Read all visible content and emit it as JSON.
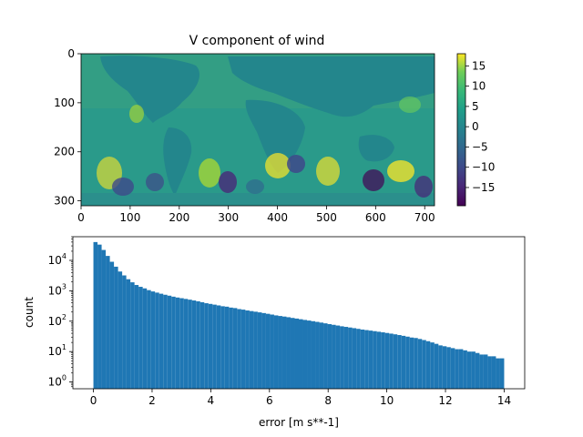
{
  "chart_data": [
    {
      "type": "heatmap",
      "title": "V component of wind",
      "xlim": [
        0,
        720
      ],
      "ylim": [
        0,
        310
      ],
      "y_inverted": true,
      "x_ticks": [
        0,
        100,
        200,
        300,
        400,
        500,
        600,
        700
      ],
      "y_ticks": [
        0,
        100,
        200,
        300
      ],
      "colormap": "viridis",
      "colorbar": {
        "range": [
          -19.5,
          18
        ],
        "ticks": [
          15,
          10,
          5,
          0,
          -5,
          -10,
          -15
        ],
        "tick_labels": [
          "15",
          "10",
          "5",
          "0",
          "−5",
          "−10",
          "−15"
        ]
      }
    },
    {
      "type": "bar",
      "subtype": "histogram",
      "xlabel": "error [m s**-1]",
      "ylabel": "count",
      "yscale": "log",
      "xlim": [
        -0.7,
        14.7
      ],
      "ylim": [
        0.6,
        60000
      ],
      "x_ticks": [
        0,
        2,
        4,
        6,
        8,
        10,
        12,
        14
      ],
      "y_ticks": [
        1,
        10,
        100,
        1000,
        10000
      ],
      "y_tick_labels": [
        "10",
        "10",
        "10",
        "10",
        "10"
      ],
      "y_tick_exponents": [
        "0",
        "1",
        "2",
        "3",
        "4"
      ],
      "color": "#1f77b4",
      "bin_width": 0.14,
      "bin_start": 0,
      "counts": [
        40000,
        33000,
        22000,
        14000,
        9000,
        6200,
        4300,
        3200,
        2400,
        1900,
        1550,
        1350,
        1200,
        1050,
        950,
        870,
        800,
        740,
        690,
        640,
        600,
        570,
        540,
        510,
        480,
        450,
        420,
        390,
        370,
        350,
        330,
        310,
        300,
        280,
        270,
        250,
        240,
        225,
        215,
        205,
        195,
        185,
        175,
        165,
        155,
        148,
        142,
        135,
        128,
        122,
        116,
        110,
        105,
        100,
        95,
        90,
        85,
        80,
        76,
        72,
        68,
        65,
        62,
        59,
        56,
        53,
        51,
        49,
        47,
        45,
        43,
        41,
        39,
        37,
        35,
        33,
        31,
        29,
        28,
        26,
        24,
        22,
        20,
        18,
        16,
        15,
        14,
        13,
        12,
        12,
        11,
        10,
        10,
        9,
        8,
        8,
        7,
        7,
        6,
        6
      ]
    }
  ]
}
